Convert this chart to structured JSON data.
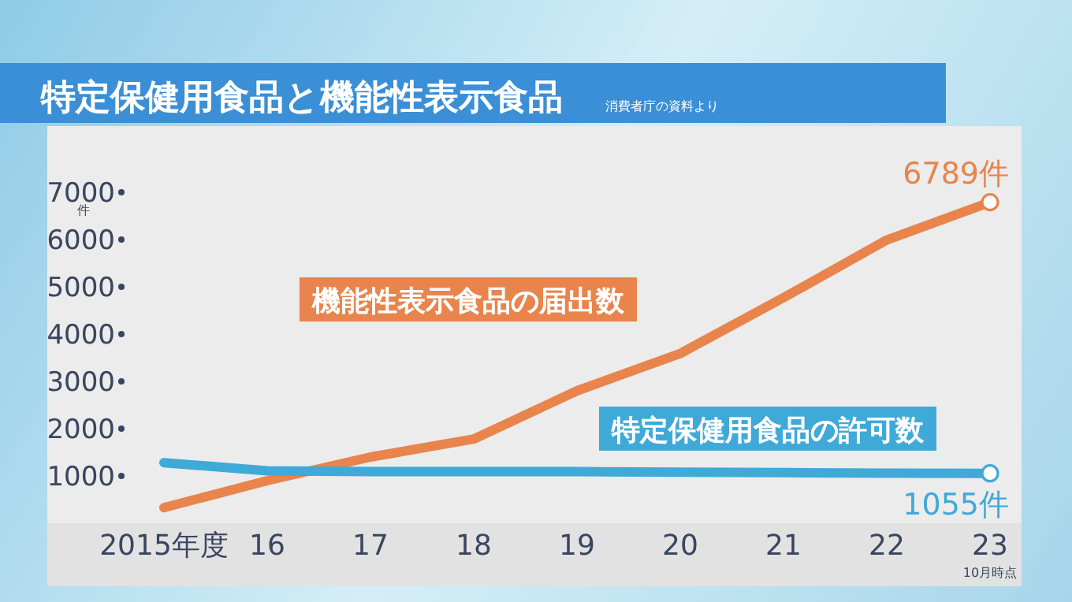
{
  "chart_data": {
    "type": "line",
    "title": "特定保健用食品と機能性表示食品",
    "annotations": [
      "消費者庁の資料より",
      "10月時点"
    ],
    "ylabel": "件",
    "categories": [
      "2015年度",
      "16",
      "17",
      "18",
      "19",
      "20",
      "21",
      "22",
      "23"
    ],
    "series": [
      {
        "name": "機能性表示食品の届出数",
        "color": "#e8844c",
        "values": [
          330,
          900,
          1400,
          1780,
          2800,
          3590,
          4770,
          5990,
          6789
        ],
        "value_labels": [
          null,
          null,
          null,
          null,
          null,
          null,
          null,
          null,
          "6789件"
        ]
      },
      {
        "name": "特定保健用食品の許可数",
        "color": "#3fa9d8",
        "values": [
          1280,
          1110,
          1090,
          1090,
          1090,
          1080,
          1070,
          1060,
          1055
        ],
        "value_labels": [
          null,
          null,
          null,
          null,
          null,
          null,
          null,
          null,
          "1055件"
        ]
      }
    ],
    "ylim": [
      0,
      8400
    ],
    "yticks": [
      1000,
      2000,
      3000,
      4000,
      5000,
      6000,
      7000
    ],
    "grid": false
  }
}
